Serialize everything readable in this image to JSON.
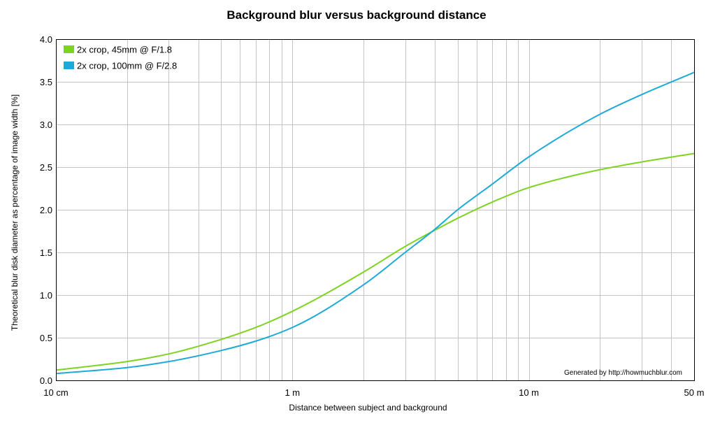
{
  "chart_data": {
    "type": "line",
    "title": "Background blur versus background distance",
    "xlabel": "Distance between subject and background",
    "ylabel": "Theoretical blur disk diameter as percentage of image width [%]",
    "x_scale": "log",
    "x_unit": "m",
    "xlim": [
      0.1,
      50
    ],
    "ylim": [
      0,
      4.0
    ],
    "x_ticks": [
      {
        "value": 0.1,
        "label": "10 cm"
      },
      {
        "value": 1,
        "label": "1 m"
      },
      {
        "value": 10,
        "label": "10 m"
      },
      {
        "value": 50,
        "label": "50 m"
      }
    ],
    "y_ticks": [
      {
        "value": 0.0,
        "label": "0.0"
      },
      {
        "value": 0.5,
        "label": "0.5"
      },
      {
        "value": 1.0,
        "label": "1.0"
      },
      {
        "value": 1.5,
        "label": "1.5"
      },
      {
        "value": 2.0,
        "label": "2.0"
      },
      {
        "value": 2.5,
        "label": "2.5"
      },
      {
        "value": 3.0,
        "label": "3.0"
      },
      {
        "value": 3.5,
        "label": "3.5"
      },
      {
        "value": 4.0,
        "label": "4.0"
      }
    ],
    "grid": true,
    "legend_position": "top-left",
    "annotation": "Generated by http://howmuchblur.com",
    "series": [
      {
        "name": "2x crop, 45mm @ F/1.8",
        "color": "#7ed321",
        "x": [
          0.1,
          0.2,
          0.3,
          0.5,
          0.7,
          1,
          2,
          3,
          4,
          5,
          7,
          10,
          20,
          30,
          50
        ],
        "y": [
          0.12,
          0.22,
          0.31,
          0.48,
          0.62,
          0.81,
          1.27,
          1.57,
          1.76,
          1.9,
          2.09,
          2.26,
          2.47,
          2.56,
          2.66
        ]
      },
      {
        "name": "2x crop, 100mm @ F/2.8",
        "color": "#1eaad8",
        "x": [
          0.1,
          0.2,
          0.3,
          0.5,
          0.7,
          1,
          2,
          3,
          4,
          5,
          7,
          10,
          20,
          30,
          50
        ],
        "y": [
          0.08,
          0.15,
          0.22,
          0.35,
          0.46,
          0.62,
          1.12,
          1.5,
          1.77,
          2.0,
          2.3,
          2.62,
          3.12,
          3.35,
          3.61
        ]
      }
    ]
  }
}
